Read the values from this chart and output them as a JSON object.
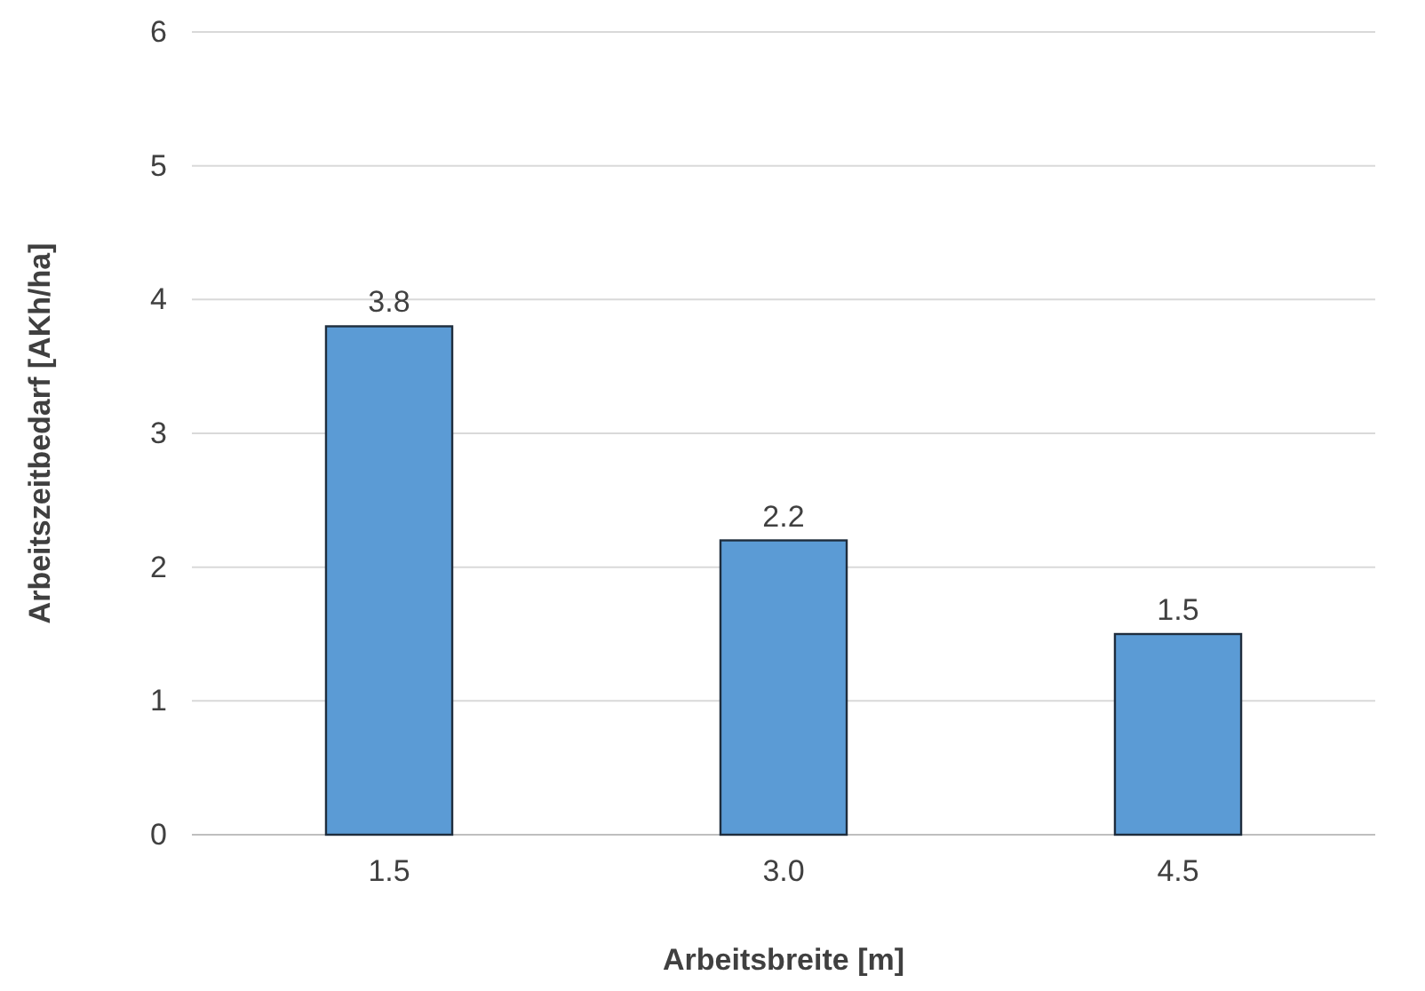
{
  "chart_data": {
    "type": "bar",
    "xlabel": "Arbeitsbreite [m]",
    "ylabel": "Arbeitszeitbedarf [AKh/ha]",
    "categories": [
      "1.5",
      "3.0",
      "4.5"
    ],
    "values": [
      3.8,
      2.2,
      1.5
    ],
    "color": "#5b9bd5",
    "ylim": [
      0,
      6
    ],
    "yticks": [
      0,
      1,
      2,
      3,
      4,
      5,
      6
    ],
    "grid": "y",
    "data_labels": true
  }
}
